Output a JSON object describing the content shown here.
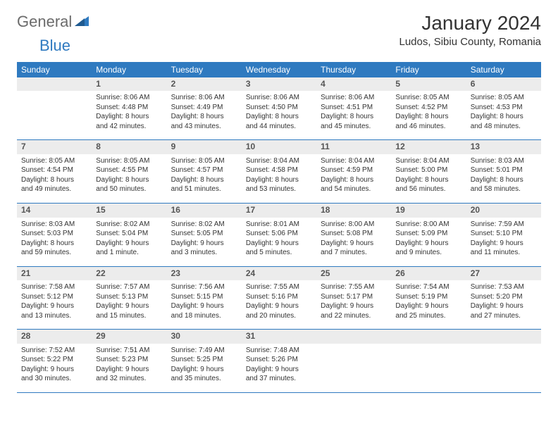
{
  "logo": {
    "general": "General",
    "blue": "Blue"
  },
  "title": "January 2024",
  "location": "Ludos, Sibiu County, Romania",
  "colors": {
    "header_bg": "#2f7ac0",
    "header_text": "#ffffff",
    "daynum_bg": "#ececec",
    "daynum_text": "#555555",
    "body_text": "#333333",
    "row_border": "#2f7ac0",
    "logo_gray": "#6b6b6b",
    "logo_blue": "#2f7ac0",
    "page_bg": "#ffffff"
  },
  "typography": {
    "title_fontsize": 28,
    "location_fontsize": 15,
    "weekday_fontsize": 12,
    "daynum_fontsize": 12,
    "body_fontsize": 10
  },
  "weekdays": [
    "Sunday",
    "Monday",
    "Tuesday",
    "Wednesday",
    "Thursday",
    "Friday",
    "Saturday"
  ],
  "weeks": [
    [
      null,
      {
        "n": "1",
        "sr": "Sunrise: 8:06 AM",
        "ss": "Sunset: 4:48 PM",
        "d1": "Daylight: 8 hours",
        "d2": "and 42 minutes."
      },
      {
        "n": "2",
        "sr": "Sunrise: 8:06 AM",
        "ss": "Sunset: 4:49 PM",
        "d1": "Daylight: 8 hours",
        "d2": "and 43 minutes."
      },
      {
        "n": "3",
        "sr": "Sunrise: 8:06 AM",
        "ss": "Sunset: 4:50 PM",
        "d1": "Daylight: 8 hours",
        "d2": "and 44 minutes."
      },
      {
        "n": "4",
        "sr": "Sunrise: 8:06 AM",
        "ss": "Sunset: 4:51 PM",
        "d1": "Daylight: 8 hours",
        "d2": "and 45 minutes."
      },
      {
        "n": "5",
        "sr": "Sunrise: 8:05 AM",
        "ss": "Sunset: 4:52 PM",
        "d1": "Daylight: 8 hours",
        "d2": "and 46 minutes."
      },
      {
        "n": "6",
        "sr": "Sunrise: 8:05 AM",
        "ss": "Sunset: 4:53 PM",
        "d1": "Daylight: 8 hours",
        "d2": "and 48 minutes."
      }
    ],
    [
      {
        "n": "7",
        "sr": "Sunrise: 8:05 AM",
        "ss": "Sunset: 4:54 PM",
        "d1": "Daylight: 8 hours",
        "d2": "and 49 minutes."
      },
      {
        "n": "8",
        "sr": "Sunrise: 8:05 AM",
        "ss": "Sunset: 4:55 PM",
        "d1": "Daylight: 8 hours",
        "d2": "and 50 minutes."
      },
      {
        "n": "9",
        "sr": "Sunrise: 8:05 AM",
        "ss": "Sunset: 4:57 PM",
        "d1": "Daylight: 8 hours",
        "d2": "and 51 minutes."
      },
      {
        "n": "10",
        "sr": "Sunrise: 8:04 AM",
        "ss": "Sunset: 4:58 PM",
        "d1": "Daylight: 8 hours",
        "d2": "and 53 minutes."
      },
      {
        "n": "11",
        "sr": "Sunrise: 8:04 AM",
        "ss": "Sunset: 4:59 PM",
        "d1": "Daylight: 8 hours",
        "d2": "and 54 minutes."
      },
      {
        "n": "12",
        "sr": "Sunrise: 8:04 AM",
        "ss": "Sunset: 5:00 PM",
        "d1": "Daylight: 8 hours",
        "d2": "and 56 minutes."
      },
      {
        "n": "13",
        "sr": "Sunrise: 8:03 AM",
        "ss": "Sunset: 5:01 PM",
        "d1": "Daylight: 8 hours",
        "d2": "and 58 minutes."
      }
    ],
    [
      {
        "n": "14",
        "sr": "Sunrise: 8:03 AM",
        "ss": "Sunset: 5:03 PM",
        "d1": "Daylight: 8 hours",
        "d2": "and 59 minutes."
      },
      {
        "n": "15",
        "sr": "Sunrise: 8:02 AM",
        "ss": "Sunset: 5:04 PM",
        "d1": "Daylight: 9 hours",
        "d2": "and 1 minute."
      },
      {
        "n": "16",
        "sr": "Sunrise: 8:02 AM",
        "ss": "Sunset: 5:05 PM",
        "d1": "Daylight: 9 hours",
        "d2": "and 3 minutes."
      },
      {
        "n": "17",
        "sr": "Sunrise: 8:01 AM",
        "ss": "Sunset: 5:06 PM",
        "d1": "Daylight: 9 hours",
        "d2": "and 5 minutes."
      },
      {
        "n": "18",
        "sr": "Sunrise: 8:00 AM",
        "ss": "Sunset: 5:08 PM",
        "d1": "Daylight: 9 hours",
        "d2": "and 7 minutes."
      },
      {
        "n": "19",
        "sr": "Sunrise: 8:00 AM",
        "ss": "Sunset: 5:09 PM",
        "d1": "Daylight: 9 hours",
        "d2": "and 9 minutes."
      },
      {
        "n": "20",
        "sr": "Sunrise: 7:59 AM",
        "ss": "Sunset: 5:10 PM",
        "d1": "Daylight: 9 hours",
        "d2": "and 11 minutes."
      }
    ],
    [
      {
        "n": "21",
        "sr": "Sunrise: 7:58 AM",
        "ss": "Sunset: 5:12 PM",
        "d1": "Daylight: 9 hours",
        "d2": "and 13 minutes."
      },
      {
        "n": "22",
        "sr": "Sunrise: 7:57 AM",
        "ss": "Sunset: 5:13 PM",
        "d1": "Daylight: 9 hours",
        "d2": "and 15 minutes."
      },
      {
        "n": "23",
        "sr": "Sunrise: 7:56 AM",
        "ss": "Sunset: 5:15 PM",
        "d1": "Daylight: 9 hours",
        "d2": "and 18 minutes."
      },
      {
        "n": "24",
        "sr": "Sunrise: 7:55 AM",
        "ss": "Sunset: 5:16 PM",
        "d1": "Daylight: 9 hours",
        "d2": "and 20 minutes."
      },
      {
        "n": "25",
        "sr": "Sunrise: 7:55 AM",
        "ss": "Sunset: 5:17 PM",
        "d1": "Daylight: 9 hours",
        "d2": "and 22 minutes."
      },
      {
        "n": "26",
        "sr": "Sunrise: 7:54 AM",
        "ss": "Sunset: 5:19 PM",
        "d1": "Daylight: 9 hours",
        "d2": "and 25 minutes."
      },
      {
        "n": "27",
        "sr": "Sunrise: 7:53 AM",
        "ss": "Sunset: 5:20 PM",
        "d1": "Daylight: 9 hours",
        "d2": "and 27 minutes."
      }
    ],
    [
      {
        "n": "28",
        "sr": "Sunrise: 7:52 AM",
        "ss": "Sunset: 5:22 PM",
        "d1": "Daylight: 9 hours",
        "d2": "and 30 minutes."
      },
      {
        "n": "29",
        "sr": "Sunrise: 7:51 AM",
        "ss": "Sunset: 5:23 PM",
        "d1": "Daylight: 9 hours",
        "d2": "and 32 minutes."
      },
      {
        "n": "30",
        "sr": "Sunrise: 7:49 AM",
        "ss": "Sunset: 5:25 PM",
        "d1": "Daylight: 9 hours",
        "d2": "and 35 minutes."
      },
      {
        "n": "31",
        "sr": "Sunrise: 7:48 AM",
        "ss": "Sunset: 5:26 PM",
        "d1": "Daylight: 9 hours",
        "d2": "and 37 minutes."
      },
      null,
      null,
      null
    ]
  ]
}
